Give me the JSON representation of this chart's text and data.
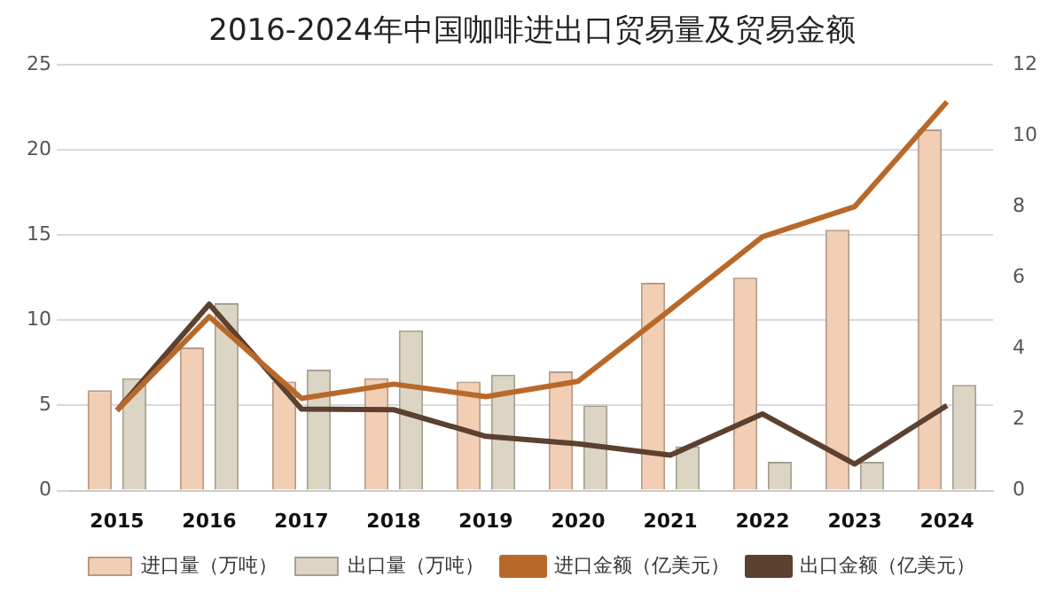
{
  "chart_data": {
    "type": "bar",
    "title": "2016-2024年中国咖啡进出口贸易量及贸易金额",
    "categories": [
      "2015",
      "2016",
      "2017",
      "2018",
      "2019",
      "2020",
      "2021",
      "2022",
      "2023",
      "2024"
    ],
    "series": [
      {
        "name": "进口量（万吨）",
        "color": "#f2cfb4",
        "values": [
          5.9,
          8.4,
          6.4,
          6.6,
          6.4,
          7.0,
          12.2,
          12.5,
          15.3,
          21.2
        ]
      },
      {
        "name": "出口量（万吨）",
        "color": "#ddd5c3",
        "values": [
          6.6,
          11.0,
          7.1,
          9.4,
          6.8,
          5.0,
          2.6,
          1.7,
          1.7,
          6.2
        ]
      },
      {
        "name": "进口金额（亿美元）",
        "type": "line",
        "axis": "y2",
        "color": "#b8692a",
        "values": [
          2.26,
          4.9,
          2.6,
          3.0,
          2.65,
          3.08,
          5.1,
          7.15,
          8.0,
          10.95
        ]
      },
      {
        "name": "出口金额（亿美元）",
        "type": "line",
        "axis": "y2",
        "color": "#5c4130",
        "values": [
          2.26,
          5.25,
          2.3,
          2.28,
          1.53,
          1.32,
          1.0,
          2.16,
          0.75,
          2.4
        ]
      }
    ],
    "ylim": [
      0,
      25
    ],
    "yticks": [
      0,
      5,
      10,
      15,
      20,
      25
    ],
    "y2lim": [
      0,
      12
    ],
    "y2ticks": [
      0,
      2,
      4,
      6,
      8,
      10,
      12
    ],
    "grid": "y",
    "legend": "bottom",
    "marker": "none",
    "line_style": "solid"
  }
}
